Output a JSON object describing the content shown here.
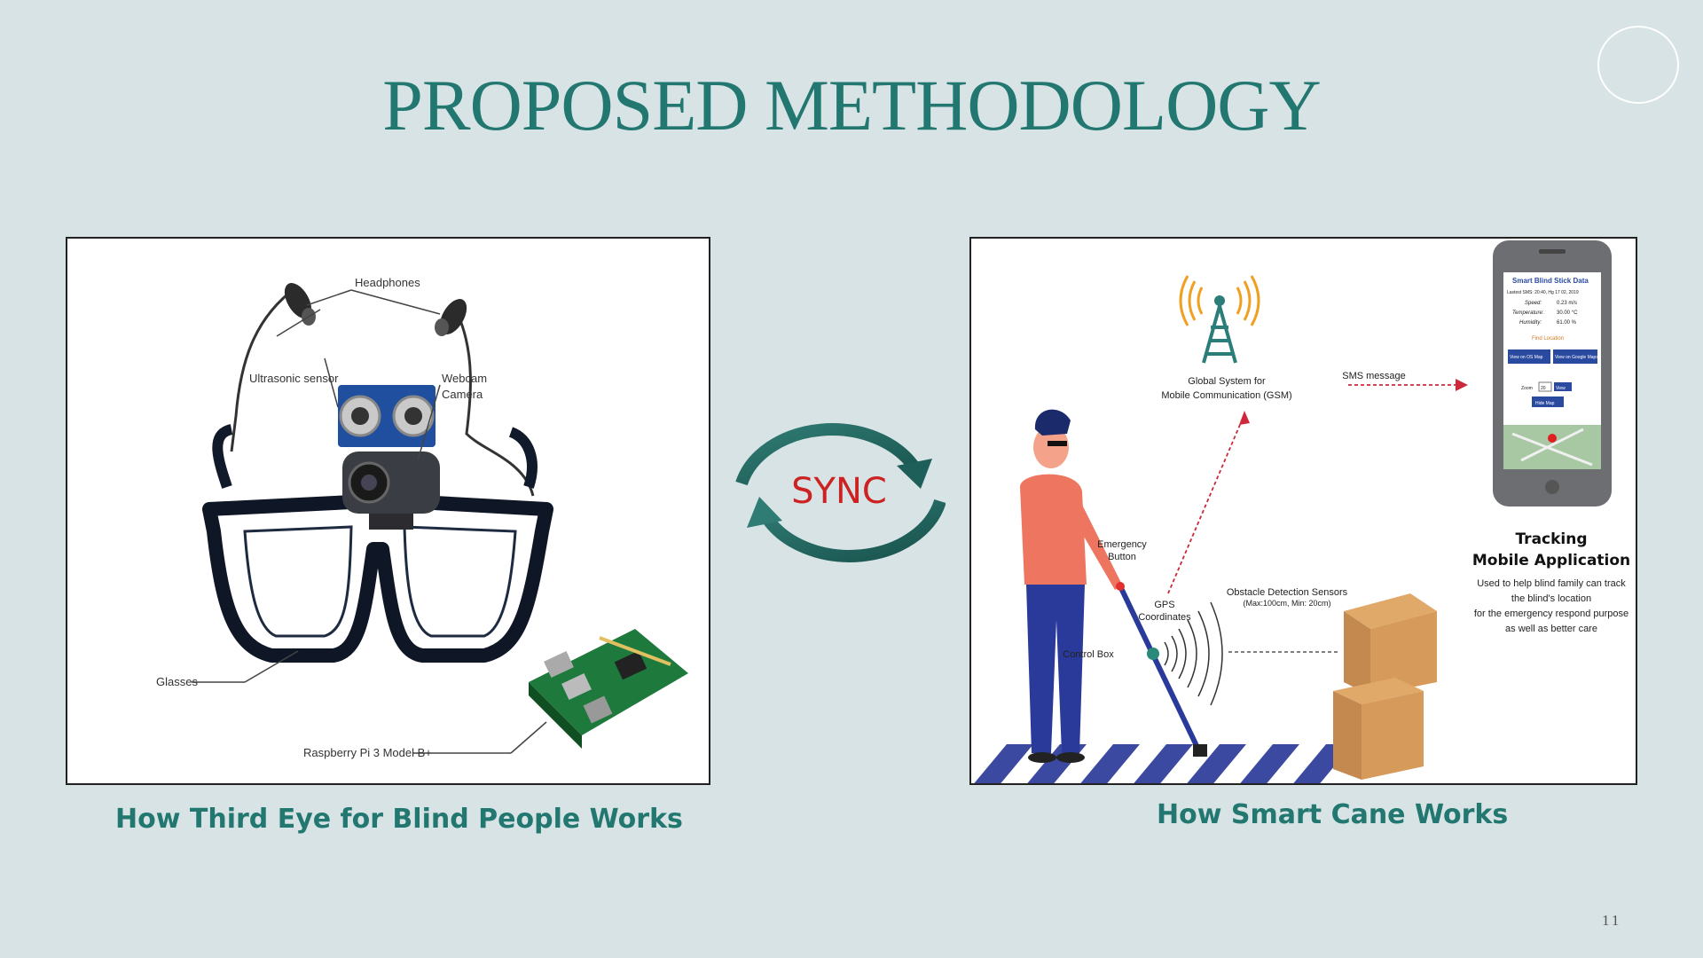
{
  "slide": {
    "title": "PROPOSED METHODOLOGY",
    "sync_label": "SYNC",
    "page_number": "11"
  },
  "left_panel": {
    "caption": "How Third Eye for Blind People Works",
    "labels": {
      "headphones": "Headphones",
      "ultrasonic": "Ultrasonic sensor",
      "webcam_1": "Webcam",
      "webcam_2": "Camera",
      "glasses": "Glasses",
      "raspberry": "Raspberry Pi 3 Model B+"
    }
  },
  "right_panel": {
    "caption": "How Smart Cane Works",
    "labels": {
      "gsm_1": "Global System for",
      "gsm_2": "Mobile Communication (GSM)",
      "sms": "SMS message",
      "emergency_1": "Emergency",
      "emergency_2": "Button",
      "gps_1": "GPS",
      "gps_2": "Coordinates",
      "control_box": "Control Box",
      "obstacle_1": "Obstacle Detection Sensors",
      "obstacle_2": "(Max:100cm, Min: 20cm)",
      "tracking_1": "Tracking",
      "tracking_2": "Mobile Application",
      "desc_1": "Used to help blind family can track",
      "desc_2": "the blind's location",
      "desc_3": "for the emergency respond purpose",
      "desc_4": "as well as better care"
    },
    "phone": {
      "app_title": "Smart Blind Stick Data",
      "latest_sms": "Lastest SMS: 20:40, Hg 17 02, 2019",
      "speed_label": "Speed:",
      "speed_value": "0.23 m/s",
      "temp_label": "Temperature:",
      "temp_value": "30.00 °C",
      "hum_label": "Humidity:",
      "hum_value": "61.00 %",
      "find_location": "Find Location",
      "btn_os_map": "View on OS Map",
      "btn_google": "View on Google Maps",
      "zoom_label": "Zoom",
      "zoom_value": "20",
      "btn_view": "View",
      "btn_hide": "Hide Map"
    }
  },
  "colors": {
    "background": "#d7e3e4",
    "accent": "#227770",
    "sync_text": "#cc2222"
  }
}
